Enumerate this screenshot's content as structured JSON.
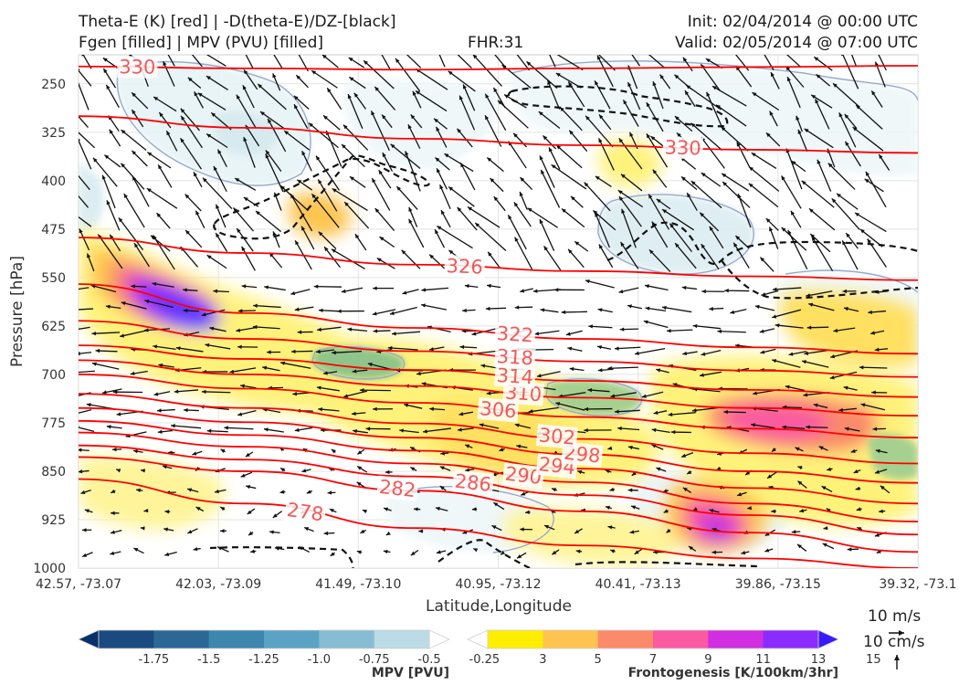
{
  "header": {
    "title_left_1": "Theta-E (K) [red] | -D(theta-E)/DZ-[black]",
    "title_left_2": "Fgen [filled] | MPV (PVU) [filled]",
    "title_center": "FHR:31",
    "title_right_1": "Init: 02/04/2014 @ 00:00 UTC",
    "title_right_2": "Valid: 02/05/2014 @ 07:00 UTC"
  },
  "chart_data": {
    "type": "cross-section",
    "xlabel": "Latitude,Longitude",
    "ylabel": "Pressure [hPa]",
    "x_ticks": [
      "42.57, -73.07",
      "42.03, -73.09",
      "41.49, -73.10",
      "40.95, -73.12",
      "40.41, -73.13",
      "39.86, -73.15",
      "39.32, -73.1"
    ],
    "y_ticks": [
      250,
      325,
      400,
      475,
      550,
      625,
      700,
      775,
      850,
      925,
      1000
    ],
    "ylim": [
      1000,
      205
    ],
    "theta_e_contours": [
      {
        "label": "278",
        "p": [
          862,
          900,
          938,
          965,
          985,
          1000
        ],
        "color": "#ff0000"
      },
      {
        "label": "282",
        "p": [
          828,
          850,
          880,
          912,
          945,
          975
        ],
        "color": "#ff0000"
      },
      {
        "label": "286",
        "p": [
          810,
          832,
          858,
          887,
          918,
          948
        ],
        "color": "#ff0000"
      },
      {
        "label": "290",
        "p": [
          790,
          812,
          838,
          867,
          900,
          928
        ],
        "color": "#ff0000"
      },
      {
        "label": "294",
        "p": [
          772,
          794,
          818,
          846,
          876,
          900
        ],
        "color": "#ff0000"
      },
      {
        "label": "298",
        "p": [
          752,
          774,
          798,
          824,
          850,
          868
        ],
        "color": "#ff0000"
      },
      {
        "label": "302",
        "p": [
          730,
          752,
          776,
          800,
          822,
          838
        ],
        "color": "#ff0000"
      },
      {
        "label": "306",
        "p": [
          700,
          722,
          744,
          766,
          784,
          798
        ],
        "color": "#ff0000"
      },
      {
        "label": "310",
        "p": [
          678,
          700,
          718,
          736,
          752,
          764
        ],
        "color": "#ff0000"
      },
      {
        "label": "314",
        "p": [
          655,
          676,
          693,
          710,
          724,
          735
        ],
        "color": "#ff0000"
      },
      {
        "label": "318",
        "p": [
          617,
          645,
          664,
          680,
          694,
          704
        ],
        "color": "#ff0000"
      },
      {
        "label": "322",
        "p": [
          560,
          605,
          628,
          645,
          658,
          668
        ],
        "color": "#ff0000"
      },
      {
        "label": "326",
        "p": [
          488,
          512,
          530,
          540,
          548,
          554
        ],
        "color": "#ff0000"
      },
      {
        "label": "330",
        "p": [
          300,
          318,
          335,
          345,
          352,
          357
        ],
        "color": "#ff0000"
      },
      {
        "label": "330",
        "p": [
          223,
          226,
          228,
          226,
          224,
          222
        ],
        "color": "#ff0000"
      }
    ],
    "mpv_colorbar": {
      "label": "MPV [PVU]",
      "ticks": [
        "-1.75",
        "-1.5",
        "-1.25",
        "-1.0",
        "-0.75",
        "-0.5",
        "-0.25"
      ],
      "colors": [
        "#08306b",
        "#1a4a80",
        "#2c6896",
        "#3d86ad",
        "#5aa3c4",
        "#86bdd3",
        "#bbdbe6",
        "#ffffff"
      ]
    },
    "fgen_colorbar": {
      "label": "Frontogenesis [K/100km/3hr]",
      "ticks": [
        "3",
        "5",
        "7",
        "9",
        "11",
        "13",
        "15"
      ],
      "colors": [
        "#ffffff",
        "#ffee00",
        "#fec44f",
        "#fb8a6a",
        "#fa5aa0",
        "#d02ee0",
        "#8a2bff",
        "#3a1aff"
      ]
    },
    "vector_reference": {
      "label_1": "10 m/s",
      "label_2": "10 cm/s"
    },
    "grid": true
  }
}
